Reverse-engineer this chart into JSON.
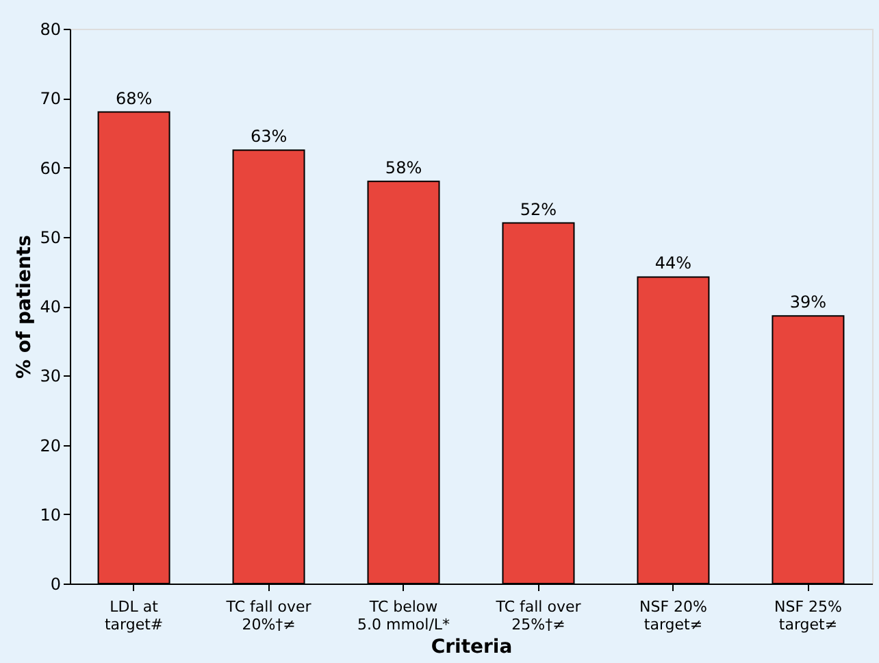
{
  "chart_data": {
    "type": "bar",
    "xlabel": "Criteria",
    "ylabel": "% of patients",
    "categories": [
      "LDL at\ntarget#",
      "TC fall over\n20%†≠",
      "TC below\n5.0 mmol/L*",
      "TC fall over\n25%†≠",
      "NSF 20%\ntarget≠",
      "NSF 25%\ntarget≠"
    ],
    "values": [
      68,
      62.5,
      58,
      52,
      44.2,
      38.6
    ],
    "value_labels": [
      "68%",
      "63%",
      "58%",
      "52%",
      "44%",
      "39%"
    ],
    "color": "#e8453c",
    "ylim": [
      0,
      80
    ],
    "yticks": [
      0,
      10,
      20,
      30,
      40,
      50,
      60,
      70,
      80
    ],
    "grid": false
  }
}
